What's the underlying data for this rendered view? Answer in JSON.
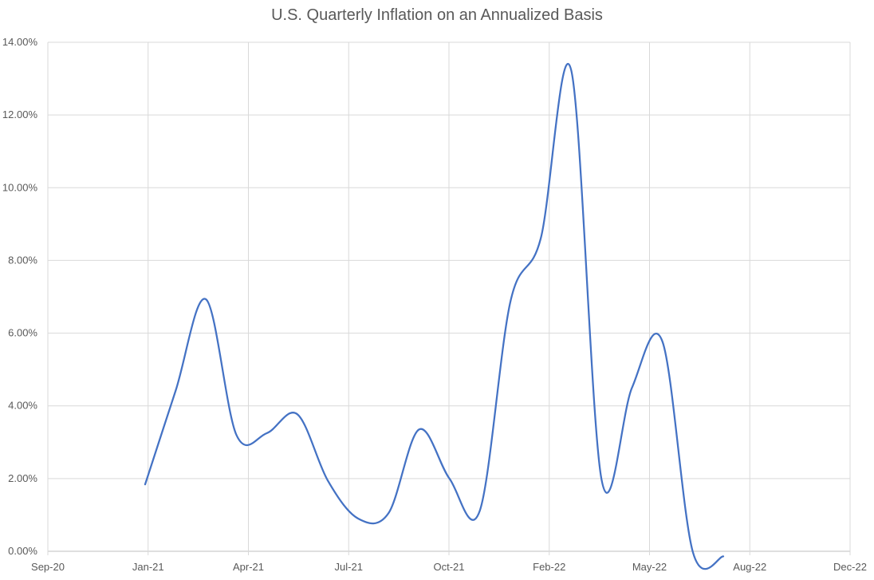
{
  "chart_data": {
    "type": "line",
    "title": "U.S. Quarterly Inflation on an Annualized Basis",
    "xlabel": "",
    "ylabel": "",
    "x": [
      "Jan-21",
      "Feb-21",
      "Mar-21",
      "Apr-21",
      "May-21",
      "Jun-21",
      "Jul-21",
      "Aug-21",
      "Sep-21",
      "Oct-21",
      "Nov-21",
      "Dec-21",
      "Jan-22",
      "Feb-22",
      "Mar-22",
      "Apr-22",
      "May-22",
      "Jun-22",
      "Jul-22",
      "Aug-22"
    ],
    "series": [
      {
        "name": "Annualized quarterly inflation (%)",
        "color": "#4472c4",
        "values": [
          1.84,
          4.41,
          6.93,
          3.2,
          3.25,
          3.77,
          1.95,
          0.9,
          1.05,
          3.35,
          2.0,
          1.12,
          6.85,
          8.6,
          13.24,
          1.97,
          4.5,
          5.77,
          -0.02,
          -0.14
        ]
      }
    ],
    "ylim": [
      0,
      14
    ],
    "y_ticks": [
      "0.00%",
      "2.00%",
      "4.00%",
      "6.00%",
      "8.00%",
      "10.00%",
      "12.00%",
      "14.00%"
    ],
    "x_ticks": [
      "Sep-20",
      "Jan-21",
      "Apr-21",
      "Jul-21",
      "Oct-21",
      "Feb-22",
      "May-22",
      "Aug-22",
      "Dec-22"
    ],
    "grid": true,
    "legend": "none"
  }
}
